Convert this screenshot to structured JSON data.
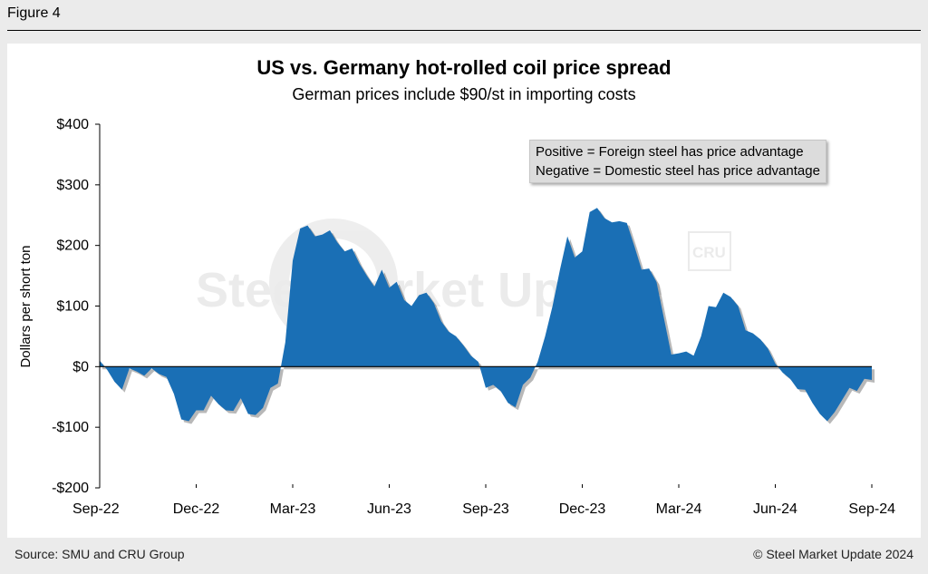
{
  "figure_label": "Figure 4",
  "footer": {
    "source": "Source: SMU and CRU Group",
    "copyright": "© Steel Market Update 2024"
  },
  "watermark": {
    "brand": "Steel Market Update",
    "badge": "CRU"
  },
  "colors": {
    "area_fill": "#1a6fb5",
    "axis": "#000000",
    "background": "#ebebeb"
  },
  "chart_data": {
    "type": "area",
    "title": "US vs. Germany hot-rolled coil price spread",
    "subtitle": "German prices include $90/st in importing costs",
    "ylabel": "Dollars per short ton",
    "xlabel": "",
    "ylim": [
      -200,
      400
    ],
    "y_ticks": [
      {
        "value": 400,
        "label": "$400"
      },
      {
        "value": 300,
        "label": "$300"
      },
      {
        "value": 200,
        "label": "$200"
      },
      {
        "value": 100,
        "label": "$100"
      },
      {
        "value": 0,
        "label": "$0"
      },
      {
        "value": -100,
        "label": "-$100"
      },
      {
        "value": -200,
        "label": "-$200"
      }
    ],
    "x_ticks": [
      "Sep-22",
      "Dec-22",
      "Mar-23",
      "Jun-23",
      "Sep-23",
      "Dec-23",
      "Mar-24",
      "Jun-24",
      "Sep-24"
    ],
    "grid": false,
    "legend": {
      "placement": "top-right",
      "lines": [
        "Positive = Foreign steel has price advantage",
        "Negative = Domestic steel has price advantage"
      ]
    },
    "series": [
      {
        "week_index": [
          0,
          1,
          2,
          3,
          4,
          5,
          6,
          7,
          8,
          9,
          10,
          11,
          12,
          13,
          14,
          15,
          16,
          17,
          18,
          19,
          20,
          21,
          22,
          23,
          24,
          25,
          26,
          27,
          28,
          29,
          30,
          31,
          32,
          33,
          34,
          35,
          36,
          37,
          38,
          39,
          40,
          41,
          42,
          43,
          44,
          45,
          46,
          47,
          48,
          49,
          50,
          51,
          52,
          53,
          54,
          55,
          56,
          57,
          58,
          59,
          60,
          61,
          62,
          63,
          64,
          65,
          66,
          67,
          68,
          69,
          70,
          71,
          72,
          73,
          74,
          75,
          76,
          77,
          78,
          79,
          80,
          81,
          82,
          83,
          84,
          85,
          86,
          87,
          88,
          89,
          90,
          91,
          92,
          93,
          94,
          95,
          96,
          97,
          98,
          99,
          100,
          101,
          102,
          103,
          104
        ],
        "values": [
          10,
          -5,
          -25,
          -38,
          -3,
          -8,
          -15,
          -3,
          -12,
          -17,
          -45,
          -87,
          -90,
          -72,
          -72,
          -48,
          -62,
          -72,
          -73,
          -52,
          -78,
          -80,
          -68,
          -35,
          -28,
          40,
          175,
          228,
          233,
          215,
          218,
          225,
          205,
          190,
          195,
          170,
          150,
          132,
          160,
          130,
          140,
          110,
          100,
          118,
          122,
          105,
          75,
          58,
          50,
          35,
          18,
          8,
          -35,
          -30,
          -40,
          -60,
          -67,
          -30,
          -18,
          8,
          50,
          100,
          160,
          215,
          180,
          190,
          255,
          262,
          245,
          238,
          240,
          237,
          200,
          160,
          162,
          140,
          80,
          20,
          22,
          25,
          18,
          50,
          100,
          98,
          122,
          115,
          100,
          60,
          55,
          45,
          30,
          5,
          -10,
          -20,
          -37,
          -38,
          -60,
          -78,
          -90,
          -75,
          -55,
          -35,
          -40,
          -20,
          -22
        ]
      }
    ]
  }
}
